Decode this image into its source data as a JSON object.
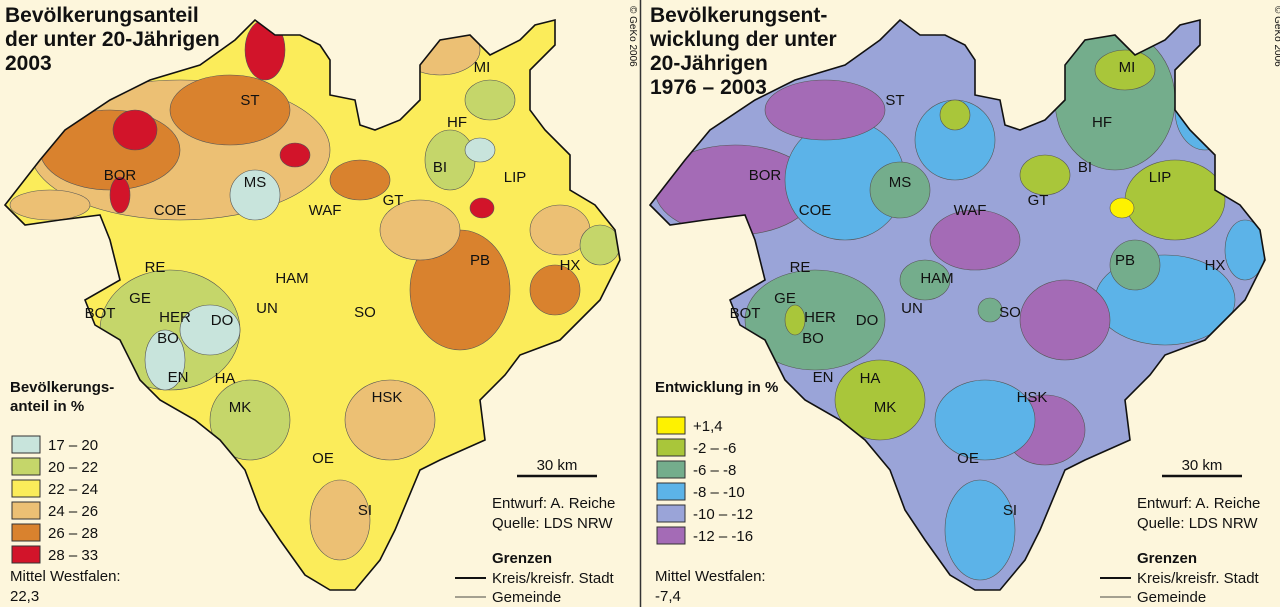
{
  "district_labels": [
    "MI",
    "ST",
    "HF",
    "BI",
    "LIP",
    "MS",
    "BOR",
    "GT",
    "COE",
    "WAF",
    "PB",
    "RE",
    "HX",
    "HAM",
    "GE",
    "BOT",
    "HER",
    "DO",
    "UN",
    "SO",
    "BO",
    "EN",
    "HA",
    "HSK",
    "MK",
    "OE",
    "SI"
  ],
  "copyright": "© GeKo 2006",
  "scale": "30 km",
  "credit_author": "Entwurf: A. Reiche",
  "credit_source": "Quelle: LDS NRW",
  "boundaries_title": "Grenzen",
  "boundaries": [
    "Kreis/kreisfr. Stadt",
    "Gemeinde"
  ],
  "left": {
    "title": [
      "Bevölkerungsanteil",
      "der unter 20-Jährigen",
      "2003"
    ],
    "legend_title": [
      "Bevölkerungs-",
      "anteil in %"
    ],
    "legend": [
      "17 – 20",
      "20 – 22",
      "22 – 24",
      "24 – 26",
      "26 – 28",
      "28 – 33"
    ],
    "mean_label": "Mittel Westfalen:",
    "mean_value": "22,3"
  },
  "right": {
    "title": [
      "Bevölkerungsent-",
      "wicklung der unter",
      "20-Jährigen",
      "1976 – 2003"
    ],
    "legend_title": [
      "Entwicklung in %"
    ],
    "legend": [
      "+1,4",
      "-2 – -6",
      "-6 – -8",
      "-8 – -10",
      "-10 – -12",
      "-12 – -16"
    ],
    "mean_label": "Mittel Westfalen:",
    "mean_value": "-7,4"
  }
}
